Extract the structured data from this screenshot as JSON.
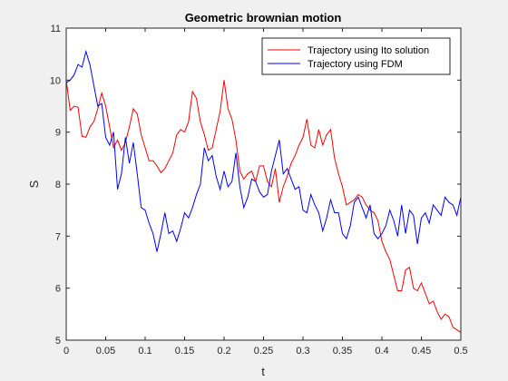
{
  "chart_data": {
    "type": "line",
    "title": "Geometric brownian motion",
    "xlabel": "t",
    "ylabel": "S",
    "xlim": [
      0,
      0.5
    ],
    "ylim": [
      5,
      11
    ],
    "xticks": [
      0,
      0.05,
      0.1,
      0.15,
      0.2,
      0.25,
      0.3,
      0.35,
      0.4,
      0.45,
      0.5
    ],
    "xtick_labels": [
      "0",
      "0.05",
      "0.1",
      "0.15",
      "0.2",
      "0.25",
      "0.3",
      "0.35",
      "0.4",
      "0.45",
      "0.5"
    ],
    "yticks": [
      5,
      6,
      7,
      8,
      9,
      10,
      11
    ],
    "ytick_labels": [
      "5",
      "6",
      "7",
      "8",
      "9",
      "10",
      "11"
    ],
    "grid": false,
    "legend_position": "top-right",
    "series": [
      {
        "name": "Trajectory using Ito solution",
        "color": "#ff0000",
        "x": [
          0,
          0.005,
          0.01,
          0.015,
          0.02,
          0.025,
          0.03,
          0.035,
          0.04,
          0.045,
          0.05,
          0.055,
          0.06,
          0.065,
          0.07,
          0.075,
          0.08,
          0.085,
          0.09,
          0.095,
          0.1,
          0.105,
          0.11,
          0.115,
          0.12,
          0.125,
          0.13,
          0.135,
          0.14,
          0.145,
          0.15,
          0.155,
          0.16,
          0.165,
          0.17,
          0.175,
          0.18,
          0.185,
          0.19,
          0.195,
          0.2,
          0.205,
          0.21,
          0.215,
          0.22,
          0.225,
          0.23,
          0.235,
          0.24,
          0.245,
          0.25,
          0.255,
          0.26,
          0.265,
          0.27,
          0.275,
          0.28,
          0.285,
          0.29,
          0.295,
          0.3,
          0.305,
          0.31,
          0.315,
          0.32,
          0.325,
          0.33,
          0.335,
          0.34,
          0.345,
          0.35,
          0.355,
          0.36,
          0.365,
          0.37,
          0.375,
          0.38,
          0.385,
          0.39,
          0.395,
          0.4,
          0.405,
          0.41,
          0.415,
          0.42,
          0.425,
          0.43,
          0.435,
          0.44,
          0.445,
          0.45,
          0.455,
          0.46,
          0.465,
          0.47,
          0.475,
          0.48,
          0.485,
          0.49,
          0.495,
          0.5
        ],
        "y": [
          10.0,
          9.42,
          9.5,
          9.48,
          8.92,
          8.9,
          9.1,
          9.2,
          9.45,
          9.75,
          9.5,
          9.1,
          8.7,
          8.85,
          8.65,
          8.8,
          9.1,
          9.45,
          9.35,
          8.95,
          8.7,
          8.45,
          8.45,
          8.35,
          8.22,
          8.3,
          8.45,
          8.6,
          8.95,
          9.05,
          9.0,
          9.2,
          9.78,
          9.65,
          9.2,
          8.95,
          8.65,
          8.7,
          9.05,
          9.4,
          10.0,
          9.45,
          9.25,
          8.85,
          8.25,
          8.1,
          8.2,
          8.25,
          8.05,
          8.35,
          8.35,
          8.05,
          7.95,
          8.3,
          7.65,
          7.95,
          8.15,
          8.4,
          8.55,
          8.75,
          8.9,
          9.25,
          8.75,
          8.7,
          9.05,
          8.75,
          8.95,
          9.05,
          8.5,
          8.2,
          7.95,
          7.6,
          7.65,
          7.7,
          7.8,
          7.75,
          7.6,
          7.5,
          7.45,
          7.3,
          6.9,
          6.7,
          6.55,
          6.25,
          5.95,
          5.95,
          6.35,
          6.4,
          6.0,
          5.95,
          6.1,
          5.9,
          5.7,
          5.75,
          5.55,
          5.4,
          5.5,
          5.45,
          5.25,
          5.2,
          5.15
        ]
      },
      {
        "name": "Trajectory using FDM",
        "color": "#0000ff",
        "x": [
          0,
          0.005,
          0.01,
          0.015,
          0.02,
          0.025,
          0.03,
          0.035,
          0.04,
          0.045,
          0.05,
          0.055,
          0.06,
          0.065,
          0.07,
          0.075,
          0.08,
          0.085,
          0.09,
          0.095,
          0.1,
          0.105,
          0.11,
          0.115,
          0.12,
          0.125,
          0.13,
          0.135,
          0.14,
          0.145,
          0.15,
          0.155,
          0.16,
          0.165,
          0.17,
          0.175,
          0.18,
          0.185,
          0.19,
          0.195,
          0.2,
          0.205,
          0.21,
          0.215,
          0.22,
          0.225,
          0.23,
          0.235,
          0.24,
          0.245,
          0.25,
          0.255,
          0.26,
          0.265,
          0.27,
          0.275,
          0.28,
          0.285,
          0.29,
          0.295,
          0.3,
          0.305,
          0.31,
          0.315,
          0.32,
          0.325,
          0.33,
          0.335,
          0.34,
          0.345,
          0.35,
          0.355,
          0.36,
          0.365,
          0.37,
          0.375,
          0.38,
          0.385,
          0.39,
          0.395,
          0.4,
          0.405,
          0.41,
          0.415,
          0.42,
          0.425,
          0.43,
          0.435,
          0.44,
          0.445,
          0.45,
          0.455,
          0.46,
          0.465,
          0.47,
          0.475,
          0.48,
          0.485,
          0.49,
          0.495,
          0.5
        ],
        "y": [
          9.95,
          10.0,
          10.1,
          10.3,
          10.25,
          10.55,
          10.3,
          9.9,
          9.5,
          9.55,
          8.9,
          8.75,
          9.0,
          7.9,
          8.2,
          8.9,
          8.4,
          8.8,
          8.2,
          7.55,
          7.5,
          7.25,
          7.05,
          6.7,
          7.05,
          7.45,
          7.05,
          7.1,
          6.9,
          7.15,
          7.45,
          7.35,
          7.55,
          7.8,
          8.0,
          8.7,
          8.45,
          8.55,
          8.15,
          7.9,
          8.25,
          7.95,
          8.05,
          8.6,
          7.95,
          7.55,
          7.75,
          8.1,
          8.05,
          7.85,
          7.75,
          7.8,
          8.25,
          8.55,
          8.85,
          8.2,
          8.3,
          8.1,
          7.9,
          7.95,
          7.5,
          7.45,
          7.8,
          7.6,
          7.45,
          7.1,
          7.35,
          7.7,
          7.45,
          7.45,
          7.05,
          6.95,
          7.2,
          7.65,
          7.75,
          7.55,
          7.35,
          7.6,
          7.05,
          6.95,
          7.05,
          7.2,
          7.5,
          7.3,
          7.0,
          7.6,
          7.05,
          7.5,
          7.4,
          6.85,
          7.35,
          7.45,
          7.25,
          7.6,
          7.5,
          7.4,
          7.75,
          7.65,
          7.6,
          7.4,
          7.75
        ]
      }
    ]
  }
}
